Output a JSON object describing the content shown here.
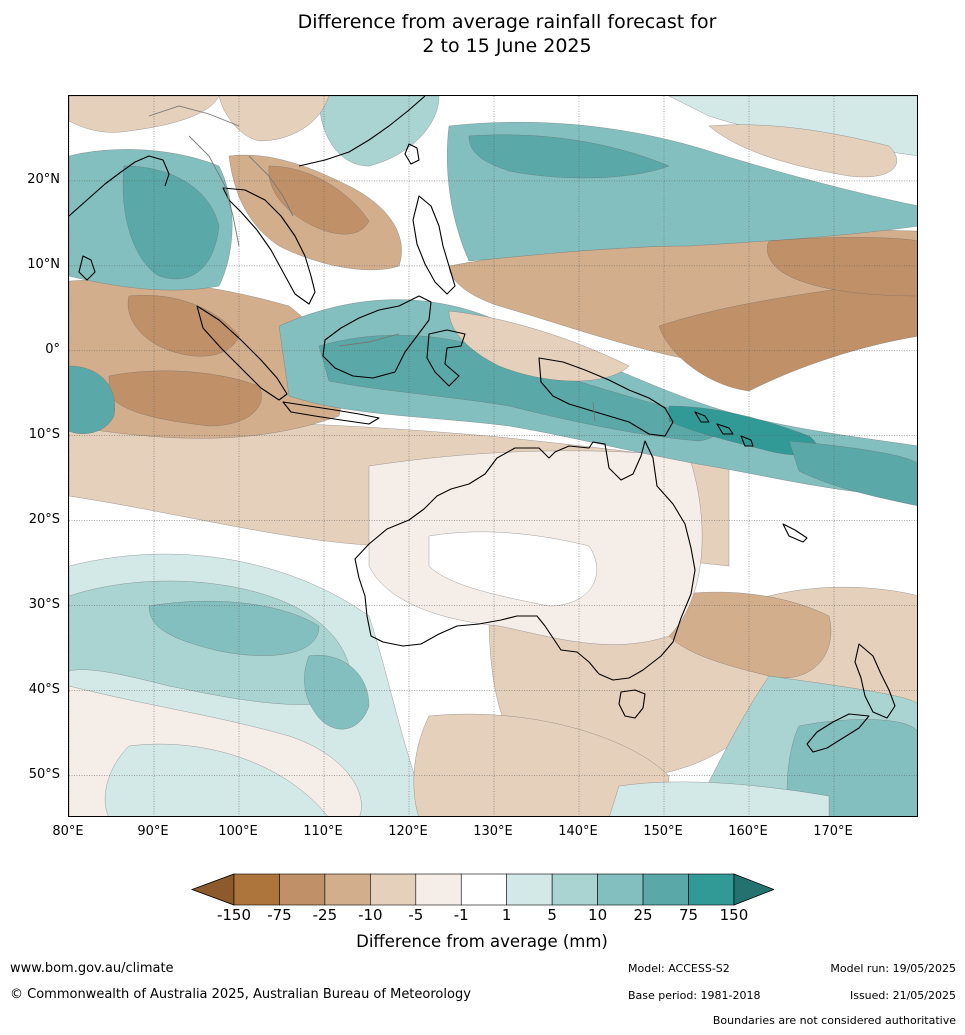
{
  "title": {
    "line1": "Difference from average rainfall forecast for",
    "line2": "2 to 15 June 2025"
  },
  "map": {
    "lon_range": [
      80,
      180
    ],
    "lat_range": [
      -55,
      30
    ],
    "lat_ticks": [
      {
        "value": 20,
        "label": "20°N"
      },
      {
        "value": 10,
        "label": "10°N"
      },
      {
        "value": 0,
        "label": "0°"
      },
      {
        "value": -10,
        "label": "10°S"
      },
      {
        "value": -20,
        "label": "20°S"
      },
      {
        "value": -30,
        "label": "30°S"
      },
      {
        "value": -40,
        "label": "40°S"
      },
      {
        "value": -50,
        "label": "50°S"
      }
    ],
    "lon_ticks": [
      {
        "value": 80,
        "label": "80°E"
      },
      {
        "value": 90,
        "label": "90°E"
      },
      {
        "value": 100,
        "label": "100°E"
      },
      {
        "value": 110,
        "label": "110°E"
      },
      {
        "value": 120,
        "label": "120°E"
      },
      {
        "value": 130,
        "label": "130°E"
      },
      {
        "value": 140,
        "label": "140°E"
      },
      {
        "value": 150,
        "label": "150°E"
      },
      {
        "value": 160,
        "label": "160°E"
      },
      {
        "value": 170,
        "label": "170°E"
      }
    ],
    "colors": {
      "lt_neg150": "#8c5a2b",
      "neg150_neg75": "#ad743c",
      "neg75_neg25": "#c09168",
      "neg25_neg10": "#d2ae8c",
      "neg10_neg5": "#e5d0bc",
      "neg5_neg1": "#f5ede7",
      "neg1_1": "#ffffff",
      "p1_5": "#d3e9e7",
      "p5_10": "#a9d4d2",
      "p10_25": "#83bfbe",
      "p25_75": "#5aa9a8",
      "p75_150": "#319a97",
      "gt150": "#247270"
    }
  },
  "colorbar": {
    "ticks": [
      "-150",
      "-75",
      "-25",
      "-10",
      "-5",
      "-1",
      "1",
      "5",
      "10",
      "25",
      "75",
      "150"
    ],
    "label": "Difference from average (mm)"
  },
  "footer": {
    "url": "www.bom.gov.au/climate",
    "copyright": "© Commonwealth of Australia 2025, Australian Bureau of Meteorology",
    "model": "Model: ACCESS-S2",
    "base_period": "Base period: 1981-2018",
    "model_run": "Model run: 19/05/2025",
    "issued": "Issued: 21/05/2025",
    "boundaries": "Boundaries are not considered authoritative"
  }
}
